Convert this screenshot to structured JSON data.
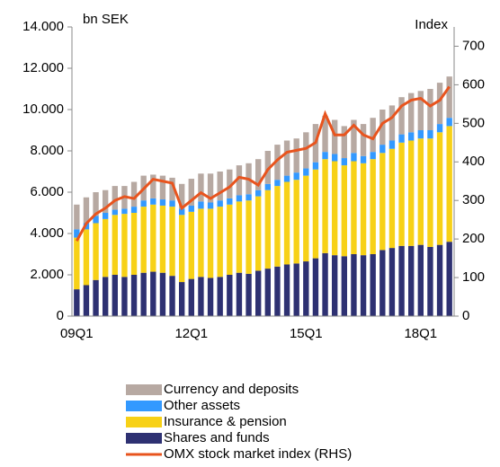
{
  "chart_data": {
    "type": "bar",
    "stacked": true,
    "y_label": "bn SEK",
    "y2_label": "Index",
    "categories": [
      "09Q1",
      null,
      null,
      null,
      null,
      null,
      null,
      null,
      null,
      null,
      null,
      null,
      "12Q1",
      null,
      null,
      null,
      null,
      null,
      null,
      null,
      null,
      null,
      null,
      null,
      "15Q1",
      null,
      null,
      null,
      null,
      null,
      null,
      null,
      null,
      null,
      null,
      null,
      "18Q1",
      null,
      null,
      null
    ],
    "ylim": [
      0,
      14000
    ],
    "yticks": [
      0,
      {
        "value": 2000,
        "label": "2.000"
      },
      {
        "value": 4000,
        "label": "4.000"
      },
      {
        "value": 6000,
        "label": "6.000"
      },
      {
        "value": 8000,
        "label": "8.000"
      },
      {
        "value": 10000,
        "label": "10.000"
      },
      {
        "value": 12000,
        "label": "12.000"
      },
      {
        "value": 14000,
        "label": "14.000"
      }
    ],
    "y2lim": [
      0,
      750
    ],
    "y2ticks": [
      0,
      100,
      200,
      300,
      400,
      500,
      600,
      700
    ],
    "series": [
      {
        "name": "Shares and funds",
        "color": "#2e3172",
        "values": [
          1300,
          1500,
          1750,
          1900,
          2000,
          1900,
          2000,
          2100,
          2150,
          2100,
          1950,
          1650,
          1800,
          1900,
          1850,
          1900,
          2000,
          2100,
          2050,
          2200,
          2300,
          2400,
          2500,
          2550,
          2650,
          2800,
          3050,
          2950,
          2900,
          3000,
          2950,
          3000,
          3200,
          3300,
          3400,
          3400,
          3450,
          3350,
          3450,
          3600
        ]
      },
      {
        "name": "Insurance & pension",
        "color": "#f7d117",
        "values": [
          2500,
          2700,
          2750,
          2800,
          2900,
          3050,
          3000,
          3200,
          3250,
          3250,
          3350,
          3250,
          3250,
          3300,
          3350,
          3400,
          3400,
          3450,
          3550,
          3600,
          3800,
          3900,
          4000,
          4050,
          4150,
          4300,
          4550,
          4550,
          4400,
          4500,
          4450,
          4600,
          4700,
          4800,
          5000,
          5100,
          5150,
          5250,
          5450,
          5600
        ]
      },
      {
        "name": "Other assets",
        "color": "#3399ff",
        "values": [
          400,
          300,
          350,
          300,
          250,
          250,
          300,
          300,
          300,
          300,
          300,
          300,
          300,
          350,
          300,
          300,
          300,
          300,
          300,
          300,
          300,
          300,
          300,
          350,
          350,
          350,
          350,
          350,
          350,
          400,
          350,
          350,
          400,
          400,
          400,
          400,
          400,
          400,
          400,
          400
        ]
      },
      {
        "name": "Currency and deposits",
        "color": "#b7a9a2",
        "values": [
          1200,
          1250,
          1150,
          1100,
          1150,
          1100,
          1200,
          1200,
          1150,
          1150,
          1100,
          1200,
          1300,
          1350,
          1400,
          1400,
          1400,
          1450,
          1500,
          1500,
          1600,
          1700,
          1700,
          1650,
          1750,
          1850,
          1750,
          1650,
          1550,
          1600,
          1550,
          1650,
          1700,
          1700,
          1800,
          1900,
          1900,
          2000,
          2000,
          2000
        ]
      },
      {
        "name": "OMX stock market index (RHS)",
        "color": "#e8541e",
        "type": "line",
        "axis": "y2",
        "values": [
          195,
          240,
          265,
          280,
          300,
          310,
          305,
          330,
          355,
          350,
          345,
          280,
          300,
          320,
          305,
          320,
          335,
          360,
          355,
          340,
          380,
          405,
          425,
          430,
          435,
          450,
          525,
          470,
          470,
          495,
          470,
          460,
          500,
          515,
          545,
          560,
          565,
          545,
          560,
          595
        ]
      }
    ]
  }
}
